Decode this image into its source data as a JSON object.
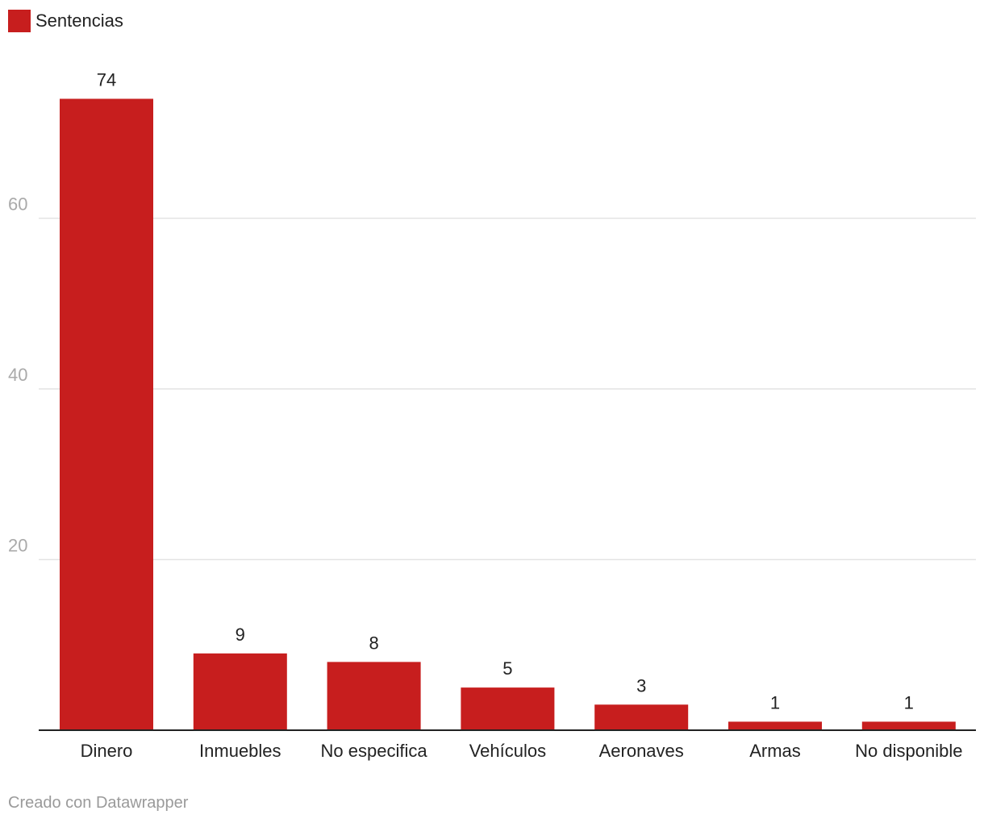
{
  "chart_data": {
    "type": "bar",
    "categories": [
      "Dinero",
      "Inmuebles",
      "No especifica",
      "Vehículos",
      "Aeronaves",
      "Armas",
      "No disponible"
    ],
    "series": [
      {
        "name": "Sentencias",
        "values": [
          74,
          9,
          8,
          5,
          3,
          1,
          1
        ]
      }
    ],
    "ylim": [
      0,
      80
    ],
    "yticks": [
      20,
      40,
      60
    ],
    "grid": true,
    "legend": "top-left",
    "data_labels": true,
    "bar_color": "#c71e1e",
    "grid_color": "#e3e3e3",
    "axis_color": "#222222",
    "tick_color": "#aaaaaa"
  },
  "legend": {
    "label": "Sentencias"
  },
  "footer": {
    "credit": "Creado con Datawrapper"
  }
}
